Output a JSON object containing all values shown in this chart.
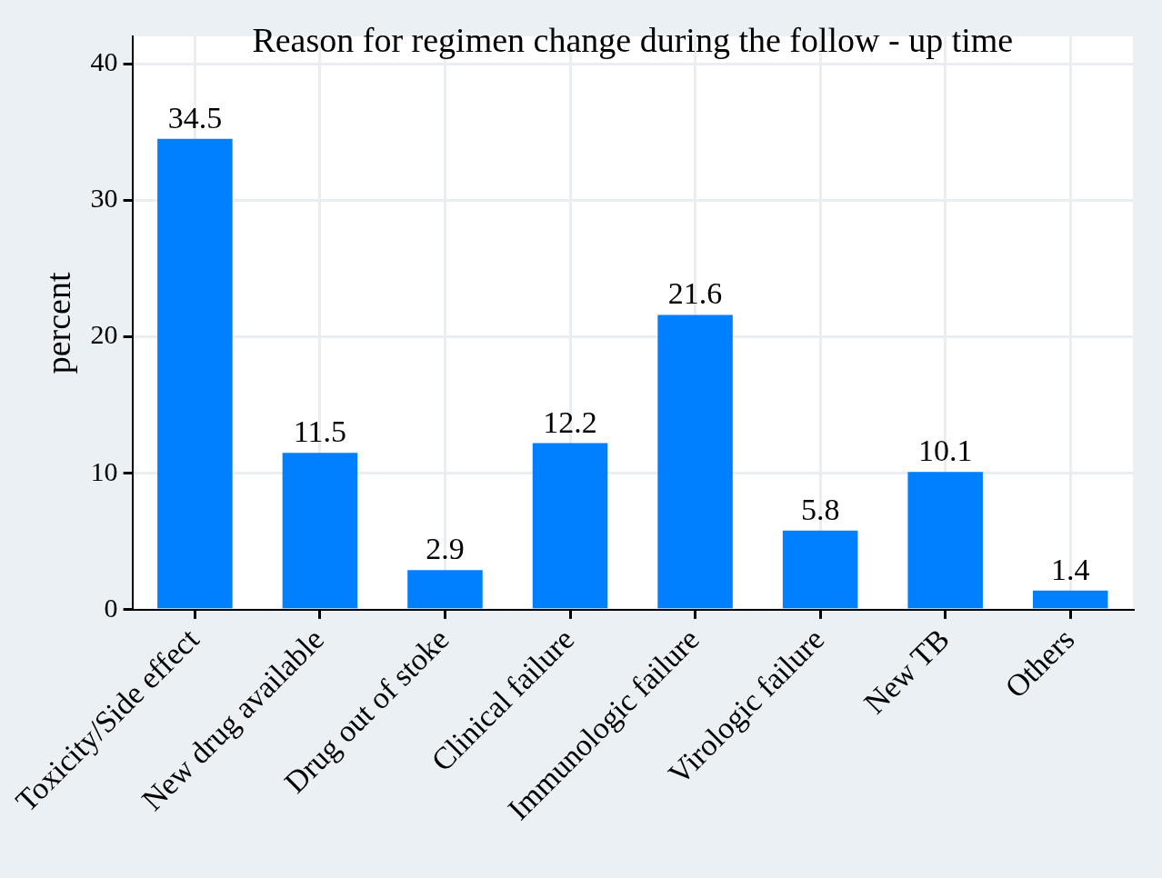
{
  "chart_data": {
    "type": "bar",
    "title": "Reason for regimen change during the follow - up time",
    "ylabel": "percent",
    "categories": [
      "Toxicity/Side effect",
      "New drug available",
      "Drug out of stoke",
      "Clinical failure",
      "Immunologic failure",
      "Virologic failure",
      "New TB",
      "Others"
    ],
    "values": [
      34.5,
      11.5,
      2.9,
      12.2,
      21.6,
      5.8,
      10.1,
      1.4
    ],
    "color": "#0080ff",
    "ylim": [
      0,
      42
    ],
    "yticks": [
      0,
      10,
      20,
      30,
      40
    ],
    "grid": true,
    "data_labels": true,
    "legend": false
  }
}
